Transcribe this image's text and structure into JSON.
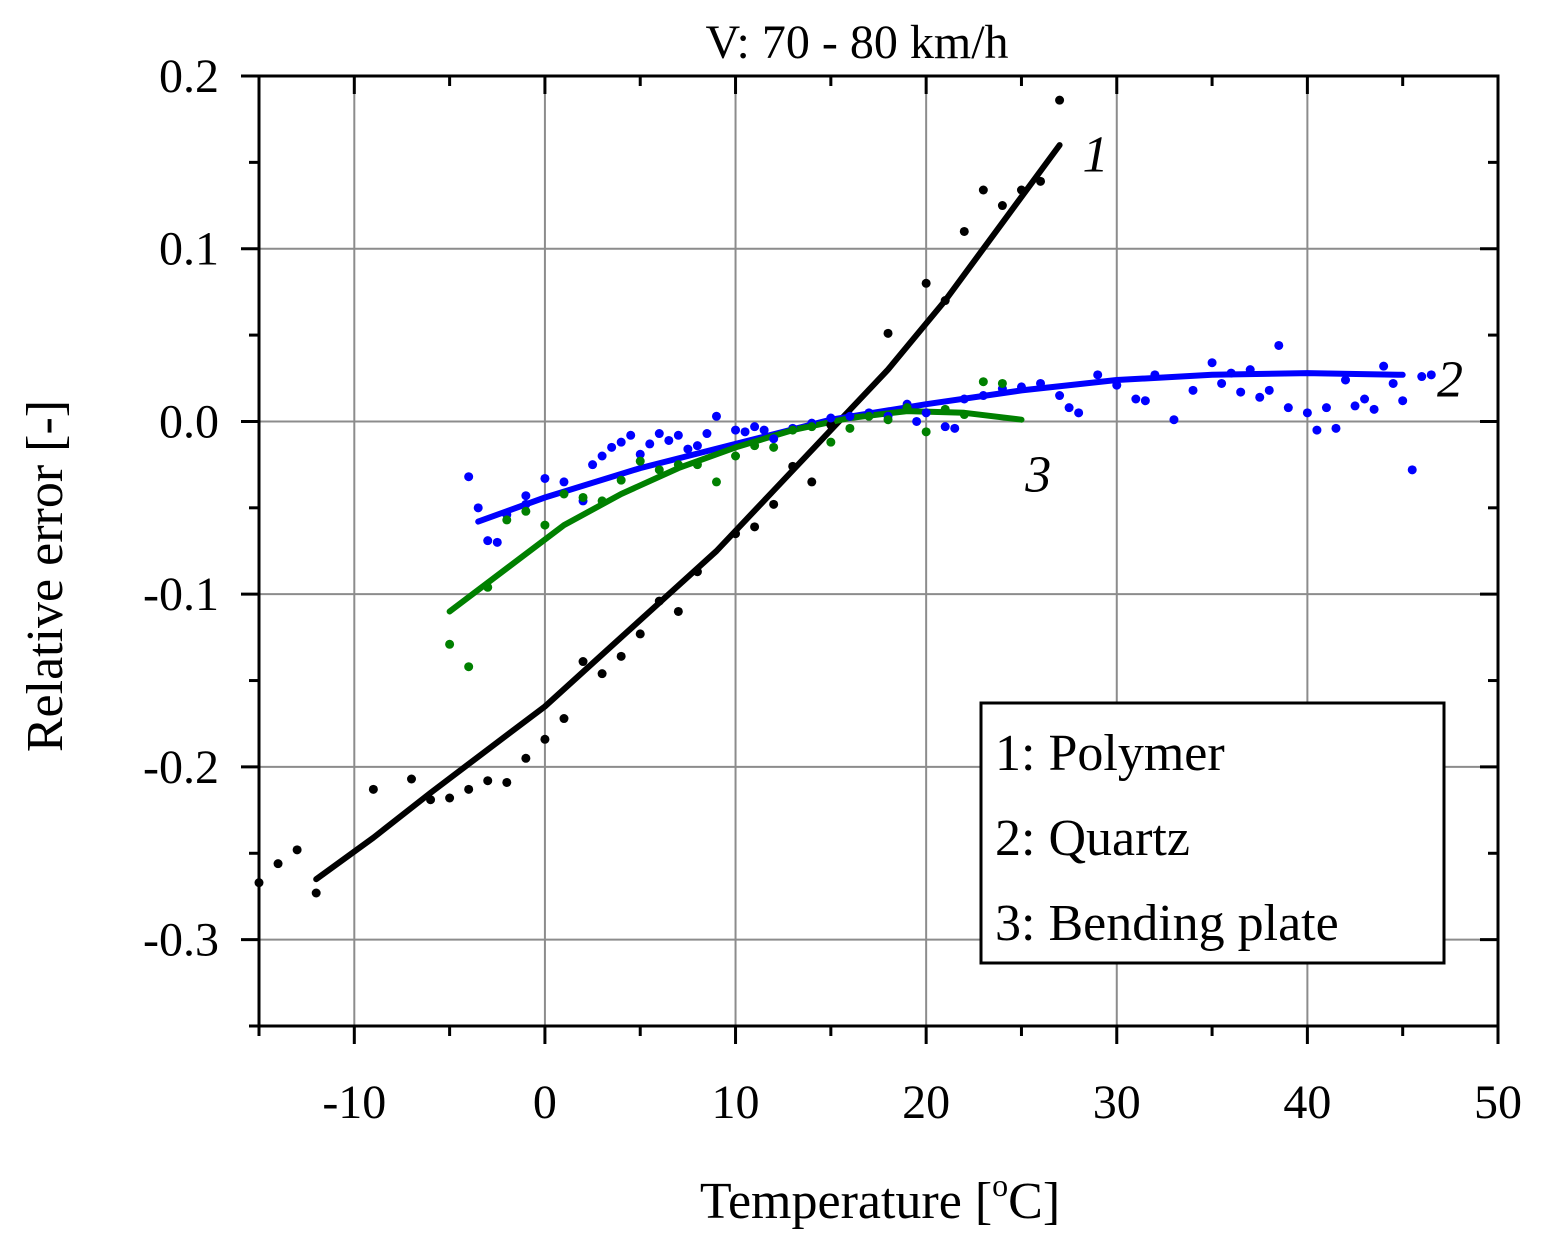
{
  "chart_data": {
    "type": "scatter",
    "title": "V: 70 - 80 km/h",
    "xlabel": "Temperature [",
    "xlabel_degree": "o",
    "xlabel_unit": "C]",
    "ylabel": "Relative error [-]",
    "xlim": [
      -15,
      50
    ],
    "ylim": [
      -0.35,
      0.2
    ],
    "x_ticks": [
      -10,
      0,
      10,
      20,
      30,
      40,
      50
    ],
    "x_tick_labels": [
      "-10",
      "0",
      "10",
      "20",
      "30",
      "40",
      "50"
    ],
    "y_ticks": [
      -0.3,
      -0.2,
      -0.1,
      0.0,
      0.1,
      0.2
    ],
    "y_tick_labels": [
      "-0.3",
      "-0.2",
      "-0.1",
      "0.0",
      "0.1",
      "0.2"
    ],
    "grid": true,
    "legend": {
      "position": "bottom-right",
      "entries": [
        "1: Polymer",
        "2: Quartz",
        "3: Bending plate"
      ]
    },
    "series": [
      {
        "name": "1: Polymer",
        "label": "1",
        "color": "#000000",
        "points": [
          [
            -15,
            -0.267
          ],
          [
            -14,
            -0.256
          ],
          [
            -13,
            -0.248
          ],
          [
            -12,
            -0.273
          ],
          [
            -9,
            -0.213
          ],
          [
            -7,
            -0.207
          ],
          [
            -6,
            -0.219
          ],
          [
            -5,
            -0.218
          ],
          [
            -4,
            -0.213
          ],
          [
            -3,
            -0.208
          ],
          [
            -2,
            -0.209
          ],
          [
            -1,
            -0.195
          ],
          [
            0,
            -0.184
          ],
          [
            1,
            -0.172
          ],
          [
            2,
            -0.139
          ],
          [
            3,
            -0.146
          ],
          [
            4,
            -0.136
          ],
          [
            5,
            -0.123
          ],
          [
            6,
            -0.104
          ],
          [
            7,
            -0.11
          ],
          [
            8,
            -0.087
          ],
          [
            10,
            -0.065
          ],
          [
            11,
            -0.061
          ],
          [
            12,
            -0.048
          ],
          [
            13,
            -0.026
          ],
          [
            14,
            -0.035
          ],
          [
            15,
            -0.002
          ],
          [
            18,
            0.051
          ],
          [
            20,
            0.08
          ],
          [
            21,
            0.07
          ],
          [
            22,
            0.11
          ],
          [
            23,
            0.134
          ],
          [
            24,
            0.125
          ],
          [
            25,
            0.134
          ],
          [
            26,
            0.139
          ],
          [
            27,
            0.186
          ]
        ],
        "fit": {
          "x": [
            -12,
            -9,
            -6,
            -3,
            0,
            3,
            6,
            9,
            12,
            15,
            18,
            21,
            24,
            27
          ],
          "y": [
            -0.265,
            -0.241,
            -0.215,
            -0.19,
            -0.165,
            -0.135,
            -0.105,
            -0.075,
            -0.04,
            -0.005,
            0.03,
            0.07,
            0.115,
            0.16
          ]
        }
      },
      {
        "name": "2: Quartz",
        "label": "2",
        "color": "#0000ff",
        "points": [
          [
            -4,
            -0.032
          ],
          [
            -3.5,
            -0.05
          ],
          [
            -3,
            -0.069
          ],
          [
            -2.5,
            -0.07
          ],
          [
            -2,
            -0.054
          ],
          [
            -1,
            -0.048
          ],
          [
            -1,
            -0.043
          ],
          [
            0,
            -0.033
          ],
          [
            1,
            -0.035
          ],
          [
            2,
            -0.046
          ],
          [
            2.5,
            -0.025
          ],
          [
            3,
            -0.02
          ],
          [
            3.5,
            -0.015
          ],
          [
            4,
            -0.012
          ],
          [
            4.5,
            -0.008
          ],
          [
            5,
            -0.019
          ],
          [
            5.5,
            -0.013
          ],
          [
            6,
            -0.007
          ],
          [
            6.5,
            -0.011
          ],
          [
            7,
            -0.008
          ],
          [
            7.5,
            -0.016
          ],
          [
            8,
            -0.014
          ],
          [
            8.5,
            -0.007
          ],
          [
            9,
            0.003
          ],
          [
            10,
            -0.005
          ],
          [
            10.5,
            -0.006
          ],
          [
            11,
            -0.003
          ],
          [
            11.5,
            -0.005
          ],
          [
            12,
            -0.01
          ],
          [
            13,
            -0.004
          ],
          [
            14,
            -0.001
          ],
          [
            15,
            0.002
          ],
          [
            16,
            0.003
          ],
          [
            17,
            0.005
          ],
          [
            18,
            0.003
          ],
          [
            19,
            0.01
          ],
          [
            19.5,
            0.0
          ],
          [
            20,
            0.005
          ],
          [
            21,
            -0.003
          ],
          [
            21.5,
            -0.004
          ],
          [
            22,
            0.013
          ],
          [
            23,
            0.015
          ],
          [
            24,
            0.019
          ],
          [
            25,
            0.02
          ],
          [
            26,
            0.022
          ],
          [
            27,
            0.015
          ],
          [
            27.5,
            0.008
          ],
          [
            28,
            0.005
          ],
          [
            29,
            0.027
          ],
          [
            30,
            0.021
          ],
          [
            31,
            0.013
          ],
          [
            31.5,
            0.012
          ],
          [
            32,
            0.027
          ],
          [
            33,
            0.001
          ],
          [
            34,
            0.018
          ],
          [
            35,
            0.034
          ],
          [
            35.5,
            0.022
          ],
          [
            36,
            0.028
          ],
          [
            36.5,
            0.017
          ],
          [
            37,
            0.03
          ],
          [
            37.5,
            0.014
          ],
          [
            38,
            0.018
          ],
          [
            38.5,
            0.044
          ],
          [
            39,
            0.008
          ],
          [
            40,
            0.005
          ],
          [
            40.5,
            -0.005
          ],
          [
            41,
            0.008
          ],
          [
            41.5,
            -0.004
          ],
          [
            42,
            0.024
          ],
          [
            42.5,
            0.009
          ],
          [
            43,
            0.013
          ],
          [
            43.5,
            0.007
          ],
          [
            44,
            0.032
          ],
          [
            44.5,
            0.022
          ],
          [
            45,
            0.012
          ],
          [
            45.5,
            -0.028
          ],
          [
            46,
            0.026
          ],
          [
            46.5,
            0.027
          ]
        ],
        "fit": {
          "x": [
            -3.5,
            0,
            5,
            10,
            15,
            20,
            25,
            30,
            35,
            40,
            45
          ],
          "y": [
            -0.058,
            -0.044,
            -0.027,
            -0.013,
            0.001,
            0.01,
            0.018,
            0.024,
            0.027,
            0.028,
            0.027
          ]
        }
      },
      {
        "name": "3: Bending plate",
        "label": "3",
        "color": "#008000",
        "points": [
          [
            -5,
            -0.129
          ],
          [
            -4,
            -0.142
          ],
          [
            -3,
            -0.096
          ],
          [
            -2,
            -0.057
          ],
          [
            -1,
            -0.052
          ],
          [
            0,
            -0.06
          ],
          [
            1,
            -0.042
          ],
          [
            2,
            -0.044
          ],
          [
            3,
            -0.046
          ],
          [
            4,
            -0.034
          ],
          [
            5,
            -0.023
          ],
          [
            6,
            -0.028
          ],
          [
            7,
            -0.025
          ],
          [
            8,
            -0.025
          ],
          [
            9,
            -0.035
          ],
          [
            10,
            -0.02
          ],
          [
            11,
            -0.014
          ],
          [
            12,
            -0.015
          ],
          [
            13,
            -0.005
          ],
          [
            14,
            -0.003
          ],
          [
            15,
            -0.012
          ],
          [
            16,
            -0.004
          ],
          [
            17,
            0.003
          ],
          [
            18,
            0.001
          ],
          [
            19,
            0.008
          ],
          [
            20,
            -0.006
          ],
          [
            21,
            0.007
          ],
          [
            22,
            0.004
          ],
          [
            23,
            0.023
          ],
          [
            24,
            0.022
          ]
        ],
        "fit": {
          "x": [
            -5,
            -2,
            1,
            4,
            7,
            10,
            13,
            16,
            19,
            22,
            25
          ],
          "y": [
            -0.11,
            -0.085,
            -0.06,
            -0.042,
            -0.027,
            -0.015,
            -0.005,
            0.002,
            0.006,
            0.005,
            0.001
          ]
        }
      }
    ]
  }
}
